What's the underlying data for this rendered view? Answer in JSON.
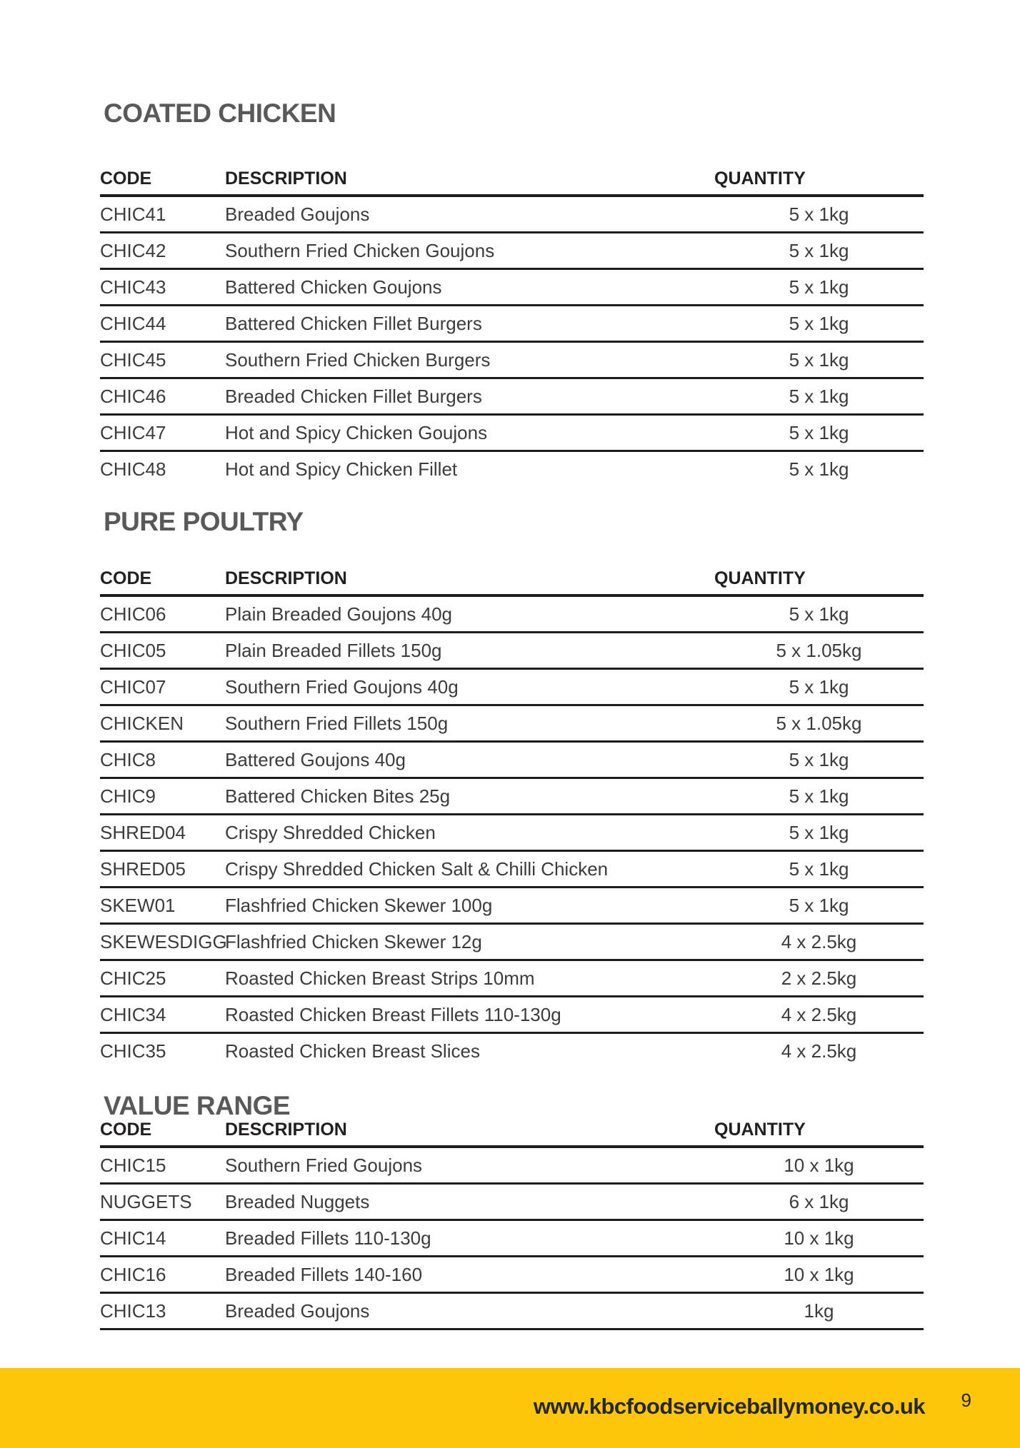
{
  "colors": {
    "accent_yellow": "#FCC60B",
    "title_gray": "#58595B",
    "rule_black": "#1D1D1B",
    "body_text": "#3C3C3E",
    "footer_text": "#262624"
  },
  "sections": [
    {
      "title": "COATED CHICKEN",
      "columns": {
        "code": "CODE",
        "description": "DESCRIPTION",
        "quantity": "QUANTITY"
      },
      "rows": [
        {
          "code": "CHIC41",
          "description": "Breaded Goujons",
          "quantity": "5 x 1kg"
        },
        {
          "code": "CHIC42",
          "description": "Southern Fried Chicken Goujons",
          "quantity": "5 x 1kg"
        },
        {
          "code": "CHIC43",
          "description": "Battered Chicken Goujons",
          "quantity": "5 x 1kg"
        },
        {
          "code": "CHIC44",
          "description": "Battered Chicken Fillet Burgers",
          "quantity": "5 x 1kg"
        },
        {
          "code": "CHIC45",
          "description": "Southern Fried Chicken Burgers",
          "quantity": "5 x 1kg"
        },
        {
          "code": "CHIC46",
          "description": "Breaded Chicken Fillet Burgers",
          "quantity": "5 x 1kg"
        },
        {
          "code": "CHIC47",
          "description": "Hot and Spicy Chicken Goujons",
          "quantity": "5 x 1kg"
        },
        {
          "code": "CHIC48",
          "description": "Hot and Spicy Chicken Fillet",
          "quantity": "5 x 1kg"
        }
      ]
    },
    {
      "title": "PURE POULTRY",
      "columns": {
        "code": "CODE",
        "description": "DESCRIPTION",
        "quantity": "QUANTITY"
      },
      "rows": [
        {
          "code": "CHIC06",
          "description": "Plain Breaded Goujons 40g",
          "quantity": "5 x 1kg"
        },
        {
          "code": "CHIC05",
          "description": "Plain Breaded Fillets 150g",
          "quantity": "5 x 1.05kg"
        },
        {
          "code": "CHIC07",
          "description": "Southern Fried Goujons 40g",
          "quantity": "5 x 1kg"
        },
        {
          "code": "CHICKEN",
          "description": "Southern Fried Fillets 150g",
          "quantity": "5 x 1.05kg"
        },
        {
          "code": "CHIC8",
          "description": "Battered Goujons 40g",
          "quantity": "5 x 1kg"
        },
        {
          "code": "CHIC9",
          "description": "Battered Chicken Bites 25g",
          "quantity": "5 x 1kg"
        },
        {
          "code": "SHRED04",
          "description": "Crispy Shredded Chicken",
          "quantity": "5 x 1kg"
        },
        {
          "code": "SHRED05",
          "description": "Crispy Shredded Chicken Salt & Chilli Chicken",
          "quantity": "5 x 1kg"
        },
        {
          "code": "SKEW01",
          "description": "Flashfried Chicken Skewer 100g",
          "quantity": "5 x 1kg"
        },
        {
          "code": "SKEWESDIGG",
          "description": "Flashfried Chicken Skewer 12g",
          "quantity": "4 x 2.5kg"
        },
        {
          "code": "CHIC25",
          "description": "Roasted Chicken Breast Strips 10mm",
          "quantity": "2 x 2.5kg"
        },
        {
          "code": "CHIC34",
          "description": "Roasted Chicken Breast Fillets 110-130g",
          "quantity": "4 x 2.5kg"
        },
        {
          "code": "CHIC35",
          "description": "Roasted Chicken Breast Slices",
          "quantity": "4 x 2.5kg"
        }
      ]
    },
    {
      "title": "VALUE RANGE",
      "columns": {
        "code": "CODE",
        "description": "DESCRIPTION",
        "quantity": "QUANTITY"
      },
      "rows": [
        {
          "code": "CHIC15",
          "description": "Southern Fried Goujons",
          "quantity": "10 x 1kg"
        },
        {
          "code": "NUGGETS",
          "description": "Breaded Nuggets",
          "quantity": "6 x 1kg"
        },
        {
          "code": "CHIC14",
          "description": "Breaded Fillets 110-130g",
          "quantity": "10 x 1kg"
        },
        {
          "code": "CHIC16",
          "description": "Breaded Fillets 140-160",
          "quantity": "10 x 1kg"
        },
        {
          "code": "CHIC13",
          "description": "Breaded Goujons",
          "quantity": "1kg"
        }
      ]
    }
  ],
  "footer": {
    "url": "www.kbcfoodserviceballymoney.co.uk",
    "page_number": "9"
  }
}
